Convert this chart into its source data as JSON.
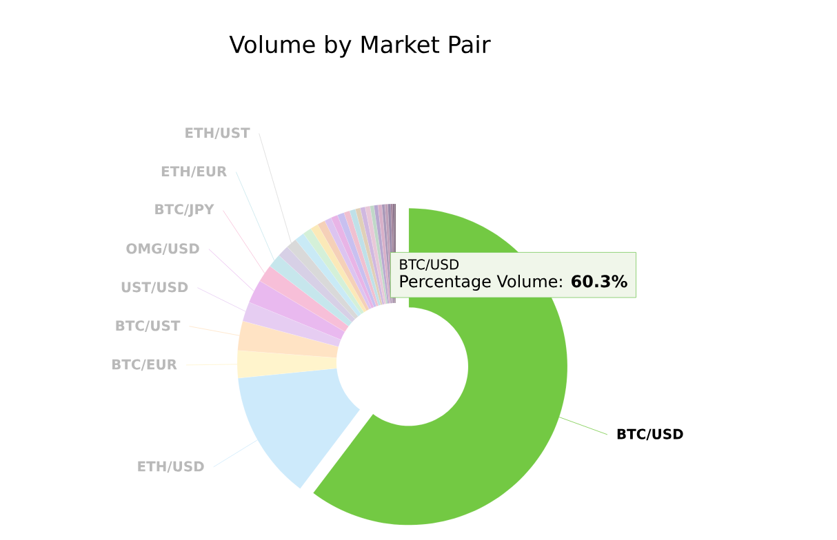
{
  "chart_data": {
    "type": "donut",
    "title": "Volume by Market Pair",
    "categories": [
      "BTC/USD",
      "ETH/USD",
      "BTC/EUR",
      "BTC/UST",
      "UST/USD",
      "OMG/USD",
      "BTC/JPY",
      "ETH/EUR",
      null,
      "ETH/UST",
      null,
      null,
      null,
      null,
      null,
      null,
      null,
      null,
      null,
      null,
      null,
      null,
      null,
      null,
      null,
      null,
      null,
      null,
      null,
      null,
      null
    ],
    "values": [
      60.3,
      13.1,
      2.8,
      3.0,
      2.0,
      2.4,
      1.8,
      1.4,
      1.2,
      1.1,
      1.0,
      0.9,
      0.8,
      0.8,
      0.7,
      0.7,
      0.7,
      0.6,
      0.6,
      0.5,
      0.5,
      0.5,
      0.4,
      0.4,
      0.4,
      0.3,
      0.3,
      0.3,
      0.2,
      0.2,
      0.1
    ],
    "colors": [
      "#73c943",
      "#cdeafb",
      "#fff4cc",
      "#ffe3c4",
      "#e6cdf2",
      "#e9b9ef",
      "#f7bfd8",
      "#c6e6ec",
      "#d7d0e6",
      "#d9d9d9",
      "#c9eaf6",
      "#d4f0d8",
      "#fbe9b8",
      "#f5d0b8",
      "#dcc4f0",
      "#e8b4e6",
      "#c8c0f0",
      "#f0c0d0",
      "#bfe0e8",
      "#e0d0b8",
      "#d0b8e0",
      "#e8c8d8",
      "#c0d8c8",
      "#b8a8d0",
      "#d8b0c8",
      "#a898b8",
      "#c0a0b8",
      "#9888a8",
      "#a08098",
      "#887088",
      "#705868"
    ],
    "annotations": [
      {
        "text": "Percentage Volume: **60.3%**",
        "x": "BTC/USD"
      }
    ]
  }
}
